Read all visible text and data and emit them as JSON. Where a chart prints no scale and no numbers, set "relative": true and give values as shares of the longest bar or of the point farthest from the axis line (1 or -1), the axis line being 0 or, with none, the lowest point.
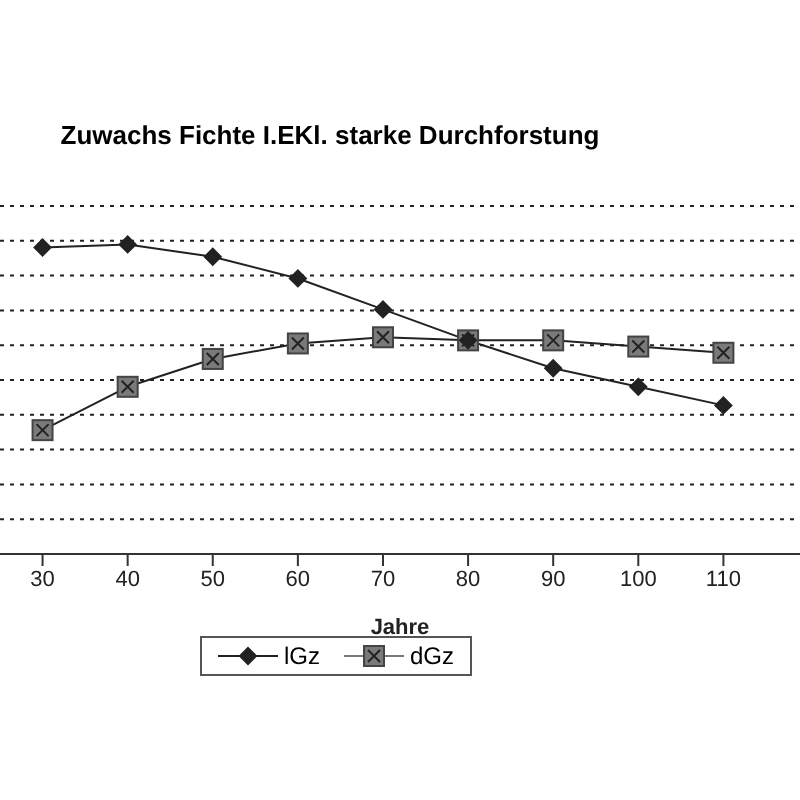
{
  "chart_data": {
    "type": "line",
    "title": "Zuwachs Fichte I.EKl. starke Durchforstung",
    "xlabel": "Jahre",
    "relative": true,
    "x": [
      30,
      40,
      50,
      60,
      70,
      80,
      90,
      100,
      110
    ],
    "xlim": [
      25,
      119
    ],
    "xticks": [
      30,
      40,
      50,
      60,
      70,
      80,
      90,
      100,
      110
    ],
    "grid": "y",
    "legend": "bottom",
    "series": [
      {
        "name": "lGz",
        "color": "#222222",
        "marker": "diamond",
        "values": [
          0.99,
          1,
          0.96,
          0.89,
          0.79,
          0.69,
          0.6,
          0.54,
          0.48
        ]
      },
      {
        "name": "dGz",
        "color": "#7a7a7a",
        "marker": "square",
        "values": [
          0.4,
          0.54,
          0.63,
          0.68,
          0.7,
          0.69,
          0.69,
          0.67,
          0.65
        ]
      }
    ]
  }
}
